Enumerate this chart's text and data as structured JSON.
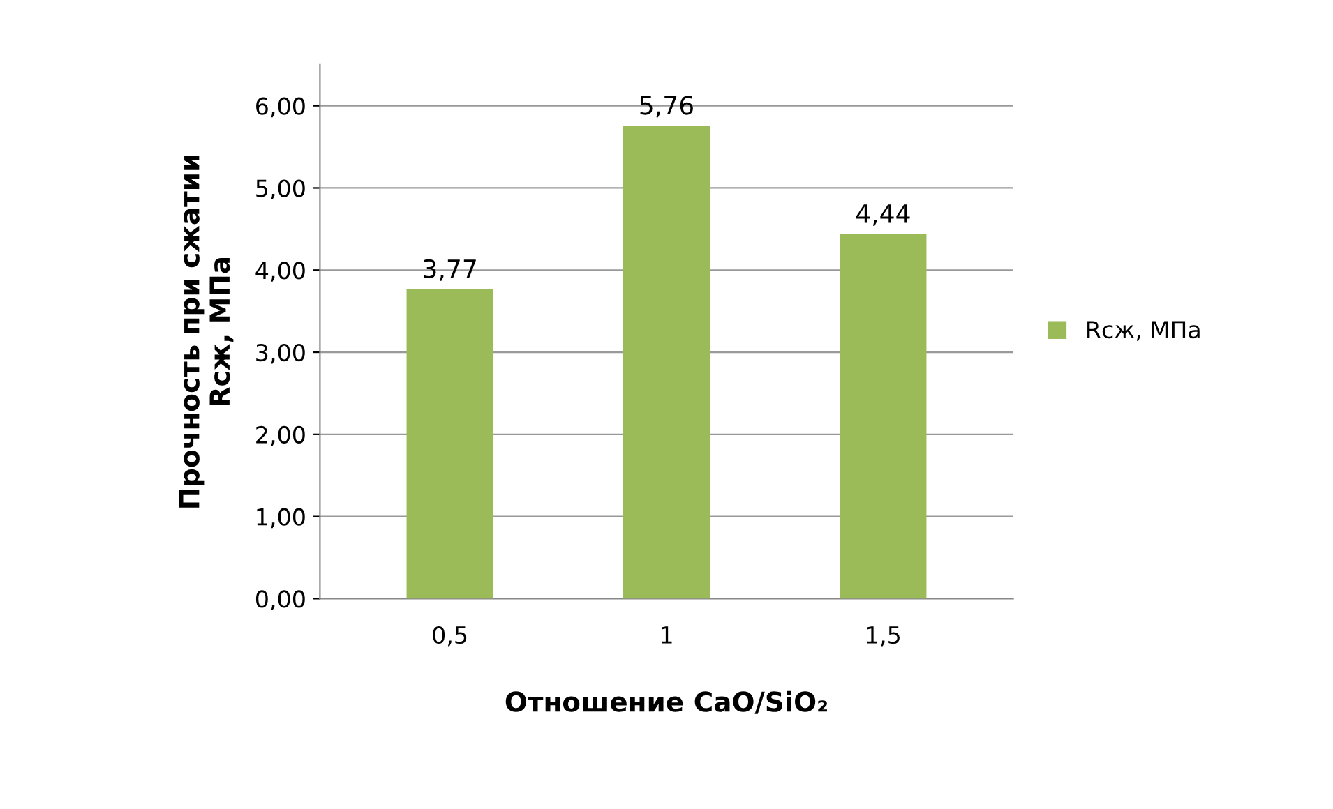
{
  "chart_data": {
    "type": "bar",
    "xlabel": "Отношение CaO/SiO₂",
    "ylabel": "Прочность при сжатии\nRсж, МПа",
    "categories": [
      "0,5",
      "1",
      "1,5"
    ],
    "series": [
      {
        "name": "Rсж, МПа",
        "color": "#9bbb59",
        "values": [
          3.77,
          5.76,
          4.44
        ],
        "value_labels": [
          "3,77",
          "5,76",
          "4,44"
        ]
      }
    ],
    "ylim": [
      0,
      6.5
    ],
    "yticks": [
      {
        "value": 0,
        "label": "0,00"
      },
      {
        "value": 1,
        "label": "1,00"
      },
      {
        "value": 2,
        "label": "2,00"
      },
      {
        "value": 3,
        "label": "3,00"
      },
      {
        "value": 4,
        "label": "4,00"
      },
      {
        "value": 5,
        "label": "5,00"
      },
      {
        "value": 6,
        "label": "6,00"
      }
    ],
    "grid": "y",
    "legend": "right"
  }
}
